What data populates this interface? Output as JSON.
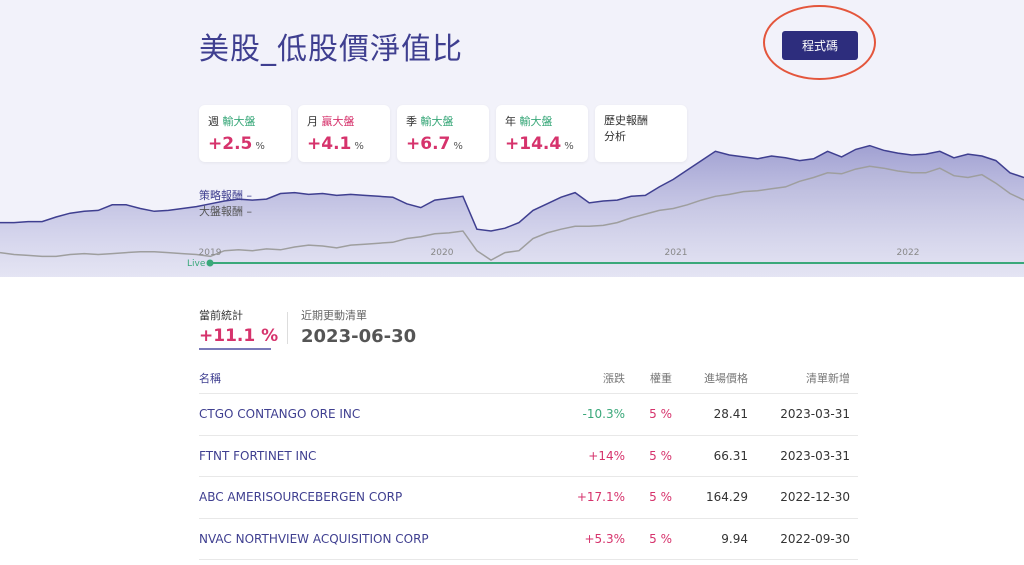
{
  "page": {
    "title": "美股_低股價淨值比"
  },
  "code_button": {
    "label": "程式碼"
  },
  "cards": [
    {
      "prefix": "週",
      "status": "輸大盤",
      "status_type": "lose",
      "value": "+2.5",
      "unit": "%"
    },
    {
      "prefix": "月",
      "status": "贏大盤",
      "status_type": "win",
      "value": "+4.1",
      "unit": "%"
    },
    {
      "prefix": "季",
      "status": "輸大盤",
      "status_type": "lose",
      "value": "+6.7",
      "unit": "%"
    },
    {
      "prefix": "年",
      "status": "輸大盤",
      "status_type": "lose",
      "value": "+14.4",
      "unit": "%"
    }
  ],
  "history_card": {
    "line1": "歷史報酬",
    "line2": "分析"
  },
  "legend": {
    "strategy": "策略報酬 –",
    "market": "大盤報酬 –"
  },
  "chart": {
    "x_labels": [
      "2019",
      "2020",
      "2021",
      "2022"
    ],
    "live_label": "Live",
    "colors": {
      "strategy": "#3f3f90",
      "market": "#9e9e9e",
      "live": "#3aa87a"
    },
    "strategy_series": [
      0.42,
      0.42,
      0.43,
      0.43,
      0.48,
      0.52,
      0.54,
      0.55,
      0.61,
      0.61,
      0.57,
      0.54,
      0.55,
      0.57,
      0.59,
      0.62,
      0.65,
      0.67,
      0.66,
      0.67,
      0.73,
      0.74,
      0.72,
      0.73,
      0.71,
      0.72,
      0.71,
      0.7,
      0.69,
      0.62,
      0.58,
      0.66,
      0.68,
      0.7,
      0.35,
      0.33,
      0.36,
      0.42,
      0.55,
      0.62,
      0.69,
      0.74,
      0.63,
      0.65,
      0.66,
      0.7,
      0.71,
      0.8,
      0.88,
      0.98,
      1.08,
      1.18,
      1.14,
      1.12,
      1.1,
      1.13,
      1.11,
      1.08,
      1.1,
      1.18,
      1.12,
      1.2,
      1.24,
      1.19,
      1.16,
      1.14,
      1.15,
      1.18,
      1.11,
      1.15,
      1.13,
      1.08,
      0.95,
      0.9
    ],
    "market_series": [
      0.1,
      0.08,
      0.07,
      0.06,
      0.06,
      0.08,
      0.09,
      0.08,
      0.09,
      0.1,
      0.11,
      0.11,
      0.1,
      0.09,
      0.08,
      0.06,
      0.12,
      0.13,
      0.12,
      0.14,
      0.13,
      0.16,
      0.18,
      0.17,
      0.15,
      0.18,
      0.19,
      0.2,
      0.21,
      0.25,
      0.27,
      0.3,
      0.31,
      0.33,
      0.12,
      0.02,
      0.1,
      0.12,
      0.25,
      0.31,
      0.35,
      0.38,
      0.38,
      0.39,
      0.42,
      0.47,
      0.51,
      0.55,
      0.57,
      0.61,
      0.66,
      0.7,
      0.72,
      0.75,
      0.76,
      0.78,
      0.8,
      0.86,
      0.9,
      0.95,
      0.94,
      0.99,
      1.02,
      1.0,
      0.97,
      0.95,
      0.95,
      1.0,
      0.92,
      0.9,
      0.93,
      0.84,
      0.73,
      0.66
    ]
  },
  "stats": {
    "label": "當前統計",
    "value": "+11.1 %"
  },
  "update": {
    "label": "近期更動清單",
    "value": "2023-06-30"
  },
  "table": {
    "headers": {
      "name": "名稱",
      "change": "漲跌",
      "weight": "權重",
      "price": "進場價格",
      "date": "清單新增"
    },
    "rows": [
      {
        "name": "CTGO CONTANGO ORE INC",
        "change": "-10.3%",
        "change_type": "neg",
        "weight": "5 %",
        "price": "28.41",
        "date": "2023-03-31"
      },
      {
        "name": "FTNT FORTINET INC",
        "change": "+14%",
        "change_type": "pos",
        "weight": "5 %",
        "price": "66.31",
        "date": "2023-03-31"
      },
      {
        "name": "ABC AMERISOURCEBERGEN CORP",
        "change": "+17.1%",
        "change_type": "pos",
        "weight": "5 %",
        "price": "164.29",
        "date": "2022-12-30"
      },
      {
        "name": "NVAC NORTHVIEW ACQUISITION CORP",
        "change": "+5.3%",
        "change_type": "pos",
        "weight": "5 %",
        "price": "9.94",
        "date": "2022-09-30"
      }
    ]
  }
}
